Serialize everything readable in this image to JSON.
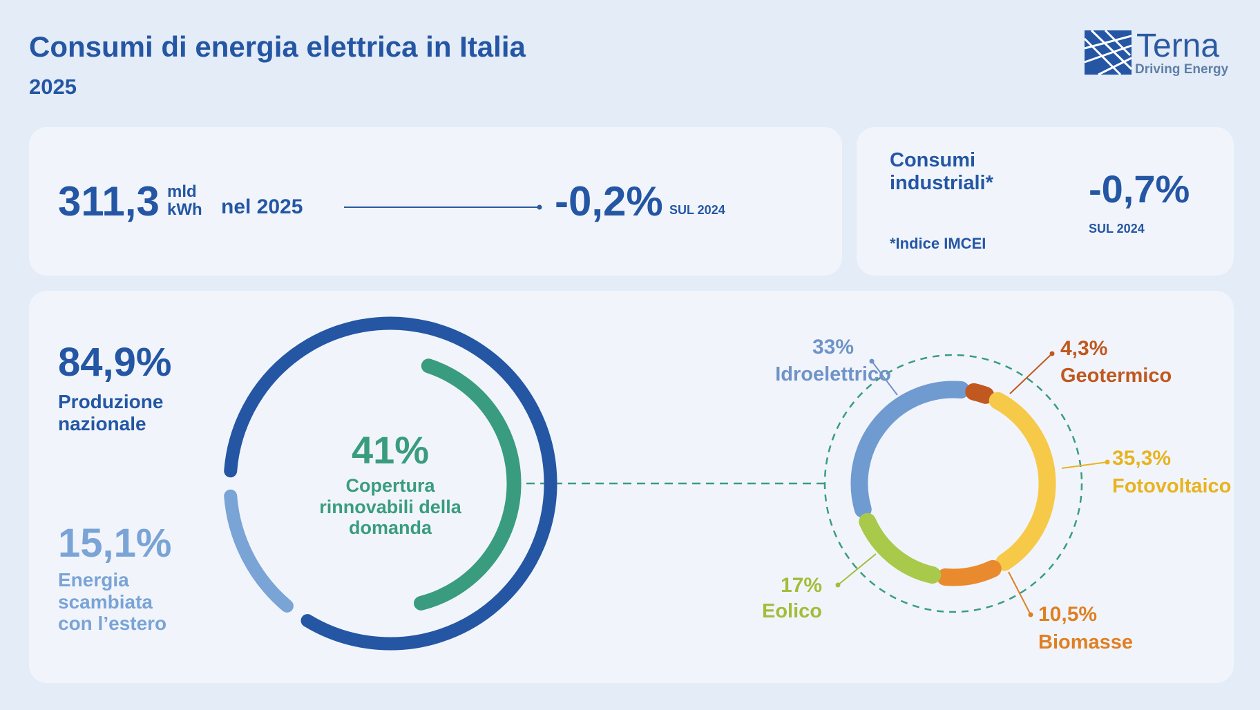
{
  "header": {
    "title": "Consumi di energia elettrica in Italia",
    "year": "2025",
    "logo": {
      "name": "Terna",
      "tagline": "Driving Energy"
    }
  },
  "consumption": {
    "value": "311,3",
    "unit_top": "mld",
    "unit_bottom": "kWh",
    "period": "nel 2025",
    "change": "-0,2%",
    "change_ref": "SUL 2024"
  },
  "industrial": {
    "label": "Consumi industriali*",
    "change": "-0,7%",
    "change_ref": "SUL 2024",
    "note": "*Indice IMCEI"
  },
  "chart_data": [
    {
      "type": "donut",
      "categories": [
        "Produzione nazionale",
        "Energia scambiata con l’estero"
      ],
      "values": [
        84.9,
        15.1
      ],
      "value_labels": [
        "84,9%",
        "15,1%"
      ],
      "colors": [
        "#2456a4",
        "#7aa3d6"
      ],
      "inner": {
        "name": "Copertura rinnovabili della domanda",
        "value": 41,
        "value_label": "41%",
        "color": "#3a9c7e"
      }
    },
    {
      "type": "donut",
      "categories": [
        "Idroelettrico",
        "Geotermico",
        "Fotovoltaico",
        "Biomasse",
        "Eolico"
      ],
      "values": [
        33,
        4.3,
        35.3,
        10.5,
        17
      ],
      "value_labels": [
        "33%",
        "4,3%",
        "35,3%",
        "10,5%",
        "17%"
      ],
      "colors": [
        "#6f9bd1",
        "#c0581f",
        "#f7c948",
        "#e98a2e",
        "#a8c94a"
      ],
      "label_colors": [
        "#6f93c8",
        "#c0581f",
        "#e8b320",
        "#e07f22",
        "#a3bd3a"
      ]
    }
  ]
}
